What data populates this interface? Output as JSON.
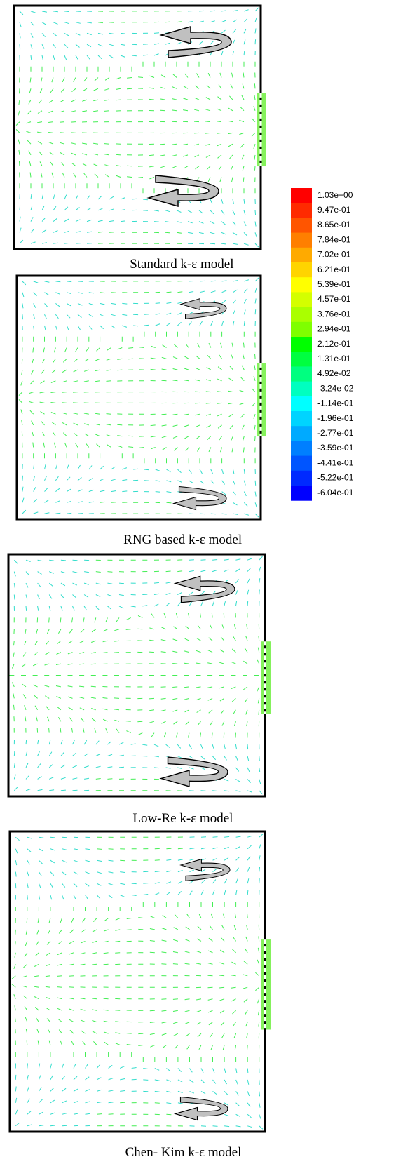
{
  "panels": [
    {
      "caption": "Standard k-ε model"
    },
    {
      "caption": "RNG based k-ε model"
    },
    {
      "caption": "Low-Re k-ε model"
    },
    {
      "caption": "Chen- Kim k-ε model"
    }
  ],
  "colorbar": {
    "labels": [
      "1.03e+00",
      "9.47e-01",
      "8.65e-01",
      "7.84e-01",
      "7.02e-01",
      "6.21e-01",
      "5.39e-01",
      "4.57e-01",
      "3.76e-01",
      "2.94e-01",
      "2.12e-01",
      "1.31e-01",
      "4.92e-02",
      "-3.24e-02",
      "-1.14e-01",
      "-1.96e-01",
      "-2.77e-01",
      "-3.59e-01",
      "-4.41e-01",
      "-5.22e-01",
      "-6.04e-01"
    ],
    "colors": [
      "#ff0000",
      "#ff2a00",
      "#ff5500",
      "#ff7f00",
      "#ffaa00",
      "#ffd400",
      "#ffff00",
      "#d4ff00",
      "#aaff00",
      "#7fff00",
      "#00ff00",
      "#00ff40",
      "#00ff80",
      "#00ffbf",
      "#00ffff",
      "#00d4ff",
      "#00aaff",
      "#007fff",
      "#0055ff",
      "#002aff",
      "#0000ff"
    ]
  }
}
